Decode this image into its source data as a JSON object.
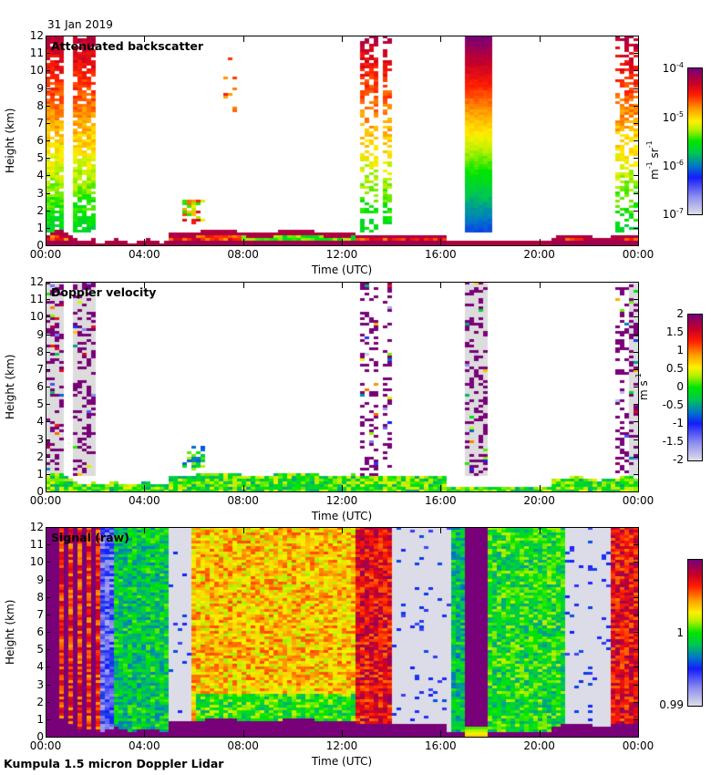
{
  "header": {
    "date": "31 Jan 2019"
  },
  "footer": {
    "instrument": "Kumpula 1.5 micron Doppler Lidar"
  },
  "chart_data": [
    {
      "type": "heatmap",
      "title": "Attenuated backscatter",
      "xlabel": "Time (UTC)",
      "ylabel": "Height (km)",
      "xlim": [
        0,
        24
      ],
      "ylim": [
        0,
        12
      ],
      "xticks": [
        "00:00",
        "04:00",
        "08:00",
        "12:00",
        "16:00",
        "20:00",
        "00:00"
      ],
      "yticks": [
        "0",
        "1",
        "2",
        "3",
        "4",
        "5",
        "6",
        "7",
        "8",
        "9",
        "10",
        "11",
        "12"
      ],
      "colorbar": {
        "scale": "log",
        "range": [
          1e-07,
          0.0001
        ],
        "ticks": [
          {
            "base": "10",
            "exp": "-4"
          },
          {
            "base": "10",
            "exp": "-5"
          },
          {
            "base": "10",
            "exp": "-6"
          },
          {
            "base": "10",
            "exp": "-7"
          }
        ],
        "unit": {
          "a": "m",
          "a_exp": "-1",
          "b": "sr",
          "b_exp": "-1"
        }
      },
      "features": [
        {
          "name": "precipitation/cloud column",
          "start_h": 0.0,
          "end_h": 2.0,
          "top_km": 12
        },
        {
          "name": "boundary layer aerosol",
          "start_h": 0.0,
          "end_h": 24.0,
          "top_km": 1.0
        },
        {
          "name": "low cloud",
          "start_h": 5.6,
          "end_h": 6.5,
          "top_km": 2.6
        },
        {
          "name": "precipitation/cloud column",
          "start_h": 12.8,
          "end_h": 14.0,
          "top_km": 12
        },
        {
          "name": "saturated column",
          "start_h": 17.0,
          "end_h": 18.0,
          "top_km": 12
        },
        {
          "name": "precipitation/cloud column",
          "start_h": 23.0,
          "end_h": 24.0,
          "top_km": 12
        }
      ]
    },
    {
      "type": "heatmap",
      "title": "Doppler velocity",
      "xlabel": "Time (UTC)",
      "ylabel": "Height (km)",
      "xlim": [
        0,
        24
      ],
      "ylim": [
        0,
        12
      ],
      "xticks": [
        "00:00",
        "04:00",
        "08:00",
        "12:00",
        "16:00",
        "20:00",
        "00:00"
      ],
      "yticks": [
        "0",
        "1",
        "2",
        "3",
        "4",
        "5",
        "6",
        "7",
        "8",
        "9",
        "10",
        "11",
        "12"
      ],
      "colorbar": {
        "scale": "linear",
        "range": [
          -2,
          2
        ],
        "ticks": [
          "2",
          "1.5",
          "1",
          "0.5",
          "0",
          "-0.5",
          "-1",
          "-1.5",
          "-2"
        ],
        "unit": {
          "a": "m",
          "b": "s",
          "b_exp": "-1"
        }
      }
    },
    {
      "type": "heatmap",
      "title": "Signal (raw)",
      "xlabel": "Time (UTC)",
      "ylabel": "Height (km)",
      "xlim": [
        0,
        24
      ],
      "ylim": [
        0,
        12
      ],
      "xticks": [
        "00:00",
        "04:00",
        "08:00",
        "12:00",
        "16:00",
        "20:00",
        "00:00"
      ],
      "yticks": [
        "0",
        "1",
        "2",
        "3",
        "4",
        "5",
        "6",
        "7",
        "8",
        "9",
        "10",
        "11",
        "12"
      ],
      "colorbar": {
        "scale": "linear",
        "range": [
          0.99,
          1.01
        ],
        "ticks": [
          "1",
          "0.99"
        ]
      }
    }
  ]
}
